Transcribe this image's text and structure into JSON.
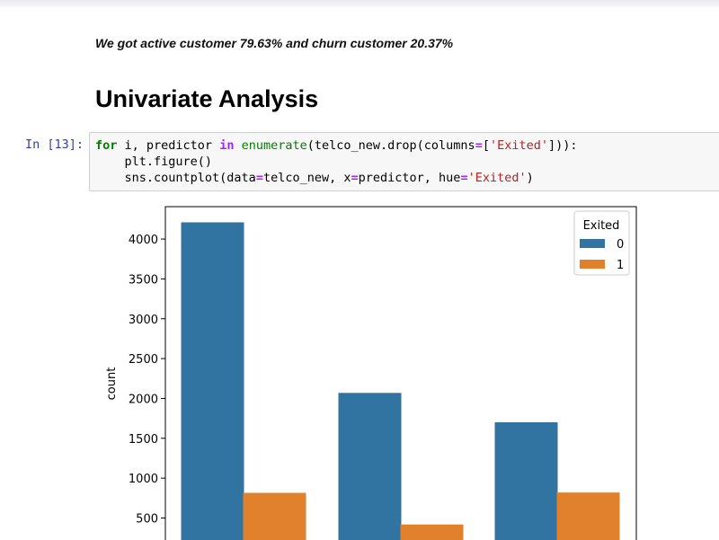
{
  "notebook": {
    "note_text": "We got active customer 79.63% and churn customer 20.37%",
    "heading": "Univariate Analysis",
    "prompt": "In [13]:",
    "code_lines": [
      "for i, predictor in enumerate(telco_new.drop(columns=['Exited'])):",
      "    plt.figure()",
      "    sns.countplot(data=telco_new, x=predictor, hue='Exited')"
    ]
  },
  "chart_data": {
    "type": "bar",
    "title": "",
    "xlabel": "",
    "ylabel": "count",
    "ylim_visible": [
      300,
      4450
    ],
    "y_ticks": [
      500,
      1000,
      1500,
      2000,
      2500,
      3000,
      3500,
      4000
    ],
    "categories": [
      "",
      "",
      ""
    ],
    "series": [
      {
        "name": "0",
        "color": "#3274a1",
        "values": [
          4204,
          2064,
          1695
        ]
      },
      {
        "name": "1",
        "color": "#e1812c",
        "values": [
          810,
          413,
          814
        ]
      }
    ],
    "legend": {
      "title": "Exited",
      "placement": "top-right"
    }
  }
}
